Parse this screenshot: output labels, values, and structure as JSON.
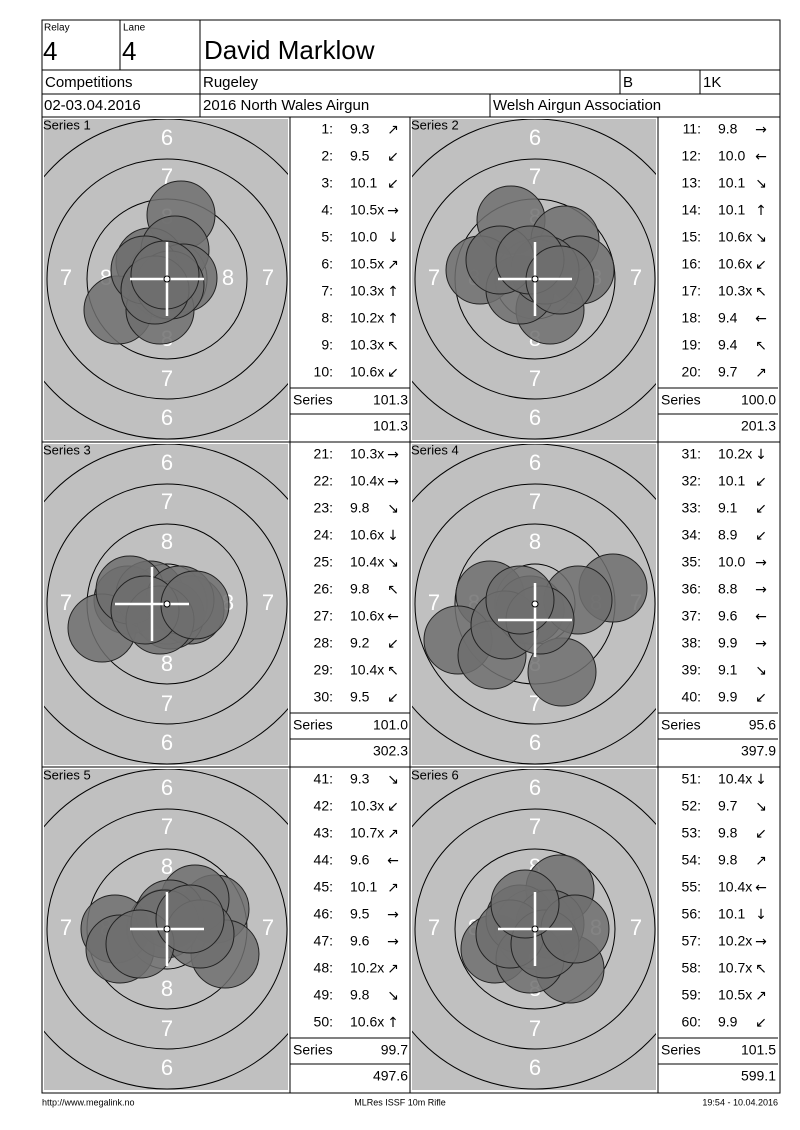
{
  "header": {
    "relay_label": "Relay",
    "relay": "4",
    "lane_label": "Lane",
    "lane": "4",
    "name": "David Marklow",
    "competitions": "Competitions",
    "venue": "Rugeley",
    "class": "B",
    "target_type": "1K",
    "date": "02-03.04.2016",
    "event": "2016 North Wales Airgun",
    "organizer": "Welsh Airgun Association"
  },
  "target_ring_labels": [
    "6",
    "7",
    "8"
  ],
  "series": [
    {
      "title": "Series 1",
      "total_label": "Series",
      "total": "101.3",
      "cumulative": "101.3",
      "shots": [
        {
          "no": "1:",
          "score": "9.3",
          "dir": "↗"
        },
        {
          "no": "2:",
          "score": "9.5",
          "dir": "↙"
        },
        {
          "no": "3:",
          "score": "10.1",
          "dir": "↙"
        },
        {
          "no": "4:",
          "score": "10.5x",
          "dir": "→"
        },
        {
          "no": "5:",
          "score": "10.0",
          "dir": "↓"
        },
        {
          "no": "6:",
          "score": "10.5x",
          "dir": "↗"
        },
        {
          "no": "7:",
          "score": "10.3x",
          "dir": "↑"
        },
        {
          "no": "8:",
          "score": "10.2x",
          "dir": "↑"
        },
        {
          "no": "9:",
          "score": "10.3x",
          "dir": "↖"
        },
        {
          "no": "10:",
          "score": "10.6x",
          "dir": "↙"
        }
      ]
    },
    {
      "title": "Series 2",
      "total_label": "Series",
      "total": "100.0",
      "cumulative": "201.3",
      "shots": [
        {
          "no": "11:",
          "score": "9.8",
          "dir": "→"
        },
        {
          "no": "12:",
          "score": "10.0",
          "dir": "←"
        },
        {
          "no": "13:",
          "score": "10.1",
          "dir": "↘"
        },
        {
          "no": "14:",
          "score": "10.1",
          "dir": "↑"
        },
        {
          "no": "15:",
          "score": "10.6x",
          "dir": "↘"
        },
        {
          "no": "16:",
          "score": "10.6x",
          "dir": "↙"
        },
        {
          "no": "17:",
          "score": "10.3x",
          "dir": "↖"
        },
        {
          "no": "18:",
          "score": "9.4",
          "dir": "←"
        },
        {
          "no": "19:",
          "score": "9.4",
          "dir": "↖"
        },
        {
          "no": "20:",
          "score": "9.7",
          "dir": "↗"
        }
      ]
    },
    {
      "title": "Series 3",
      "total_label": "Series",
      "total": "101.0",
      "cumulative": "302.3",
      "shots": [
        {
          "no": "21:",
          "score": "10.3x",
          "dir": "→"
        },
        {
          "no": "22:",
          "score": "10.4x",
          "dir": "→"
        },
        {
          "no": "23:",
          "score": "9.8",
          "dir": "↘"
        },
        {
          "no": "24:",
          "score": "10.6x",
          "dir": "↓"
        },
        {
          "no": "25:",
          "score": "10.4x",
          "dir": "↘"
        },
        {
          "no": "26:",
          "score": "9.8",
          "dir": "↖"
        },
        {
          "no": "27:",
          "score": "10.6x",
          "dir": "←"
        },
        {
          "no": "28:",
          "score": "9.2",
          "dir": "↙"
        },
        {
          "no": "29:",
          "score": "10.4x",
          "dir": "↖"
        },
        {
          "no": "30:",
          "score": "9.5",
          "dir": "↙"
        }
      ]
    },
    {
      "title": "Series 4",
      "total_label": "Series",
      "total": "95.6",
      "cumulative": "397.9",
      "shots": [
        {
          "no": "31:",
          "score": "10.2x",
          "dir": "↓"
        },
        {
          "no": "32:",
          "score": "10.1",
          "dir": "↙"
        },
        {
          "no": "33:",
          "score": "9.1",
          "dir": "↙"
        },
        {
          "no": "34:",
          "score": "8.9",
          "dir": "↙"
        },
        {
          "no": "35:",
          "score": "10.0",
          "dir": "→"
        },
        {
          "no": "36:",
          "score": "8.8",
          "dir": "→"
        },
        {
          "no": "37:",
          "score": "9.6",
          "dir": "←"
        },
        {
          "no": "38:",
          "score": "9.9",
          "dir": "→"
        },
        {
          "no": "39:",
          "score": "9.1",
          "dir": "↘"
        },
        {
          "no": "40:",
          "score": "9.9",
          "dir": "↙"
        }
      ]
    },
    {
      "title": "Series 5",
      "total_label": "Series",
      "total": "99.7",
      "cumulative": "497.6",
      "shots": [
        {
          "no": "41:",
          "score": "9.3",
          "dir": "↘"
        },
        {
          "no": "42:",
          "score": "10.3x",
          "dir": "↙"
        },
        {
          "no": "43:",
          "score": "10.7x",
          "dir": "↗"
        },
        {
          "no": "44:",
          "score": "9.6",
          "dir": "←"
        },
        {
          "no": "45:",
          "score": "10.1",
          "dir": "↗"
        },
        {
          "no": "46:",
          "score": "9.5",
          "dir": "→"
        },
        {
          "no": "47:",
          "score": "9.6",
          "dir": "→"
        },
        {
          "no": "48:",
          "score": "10.2x",
          "dir": "↗"
        },
        {
          "no": "49:",
          "score": "9.8",
          "dir": "↘"
        },
        {
          "no": "50:",
          "score": "10.6x",
          "dir": "↑"
        }
      ]
    },
    {
      "title": "Series 6",
      "total_label": "Series",
      "total": "101.5",
      "cumulative": "599.1",
      "shots": [
        {
          "no": "51:",
          "score": "10.4x",
          "dir": "↓"
        },
        {
          "no": "52:",
          "score": "9.7",
          "dir": "↘"
        },
        {
          "no": "53:",
          "score": "9.8",
          "dir": "↙"
        },
        {
          "no": "54:",
          "score": "9.8",
          "dir": "↗"
        },
        {
          "no": "55:",
          "score": "10.4x",
          "dir": "←"
        },
        {
          "no": "56:",
          "score": "10.1",
          "dir": "↓"
        },
        {
          "no": "57:",
          "score": "10.2x",
          "dir": "→"
        },
        {
          "no": "58:",
          "score": "10.7x",
          "dir": "↖"
        },
        {
          "no": "59:",
          "score": "10.5x",
          "dir": "↗"
        },
        {
          "no": "60:",
          "score": "9.9",
          "dir": "↙"
        }
      ]
    }
  ],
  "footer": {
    "url": "http://www.megalink.no",
    "program": "MLRes ISSF 10m Rifle",
    "timestamp": "19:54 - 10.04.2016"
  }
}
